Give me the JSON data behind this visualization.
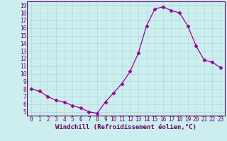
{
  "x": [
    0,
    1,
    2,
    3,
    4,
    5,
    6,
    7,
    8,
    9,
    10,
    11,
    12,
    13,
    14,
    15,
    16,
    17,
    18,
    19,
    20,
    21,
    22,
    23
  ],
  "y": [
    8.0,
    7.7,
    7.0,
    6.5,
    6.3,
    5.8,
    5.5,
    5.0,
    4.8,
    6.3,
    7.5,
    8.7,
    10.3,
    12.7,
    16.3,
    18.5,
    18.8,
    18.3,
    18.0,
    16.3,
    13.7,
    11.8,
    11.5,
    10.8
  ],
  "line_color": "#990099",
  "marker": "D",
  "marker_size": 2.5,
  "bg_color": "#cceeee",
  "grid_color": "#aadddd",
  "xlabel": "Windchill (Refroidissement éolien,°C)",
  "ylim": [
    4.5,
    19.5
  ],
  "xlim": [
    -0.5,
    23.5
  ],
  "yticks": [
    5,
    6,
    7,
    8,
    9,
    10,
    11,
    12,
    13,
    14,
    15,
    16,
    17,
    18,
    19
  ],
  "xticks": [
    0,
    1,
    2,
    3,
    4,
    5,
    6,
    7,
    8,
    9,
    10,
    11,
    12,
    13,
    14,
    15,
    16,
    17,
    18,
    19,
    20,
    21,
    22,
    23
  ],
  "tick_label_fontsize": 5.5,
  "xlabel_fontsize": 6.5,
  "line_color_dark": "#660066",
  "spine_color": "#660066",
  "grid_color_white": "#c8e8e8"
}
